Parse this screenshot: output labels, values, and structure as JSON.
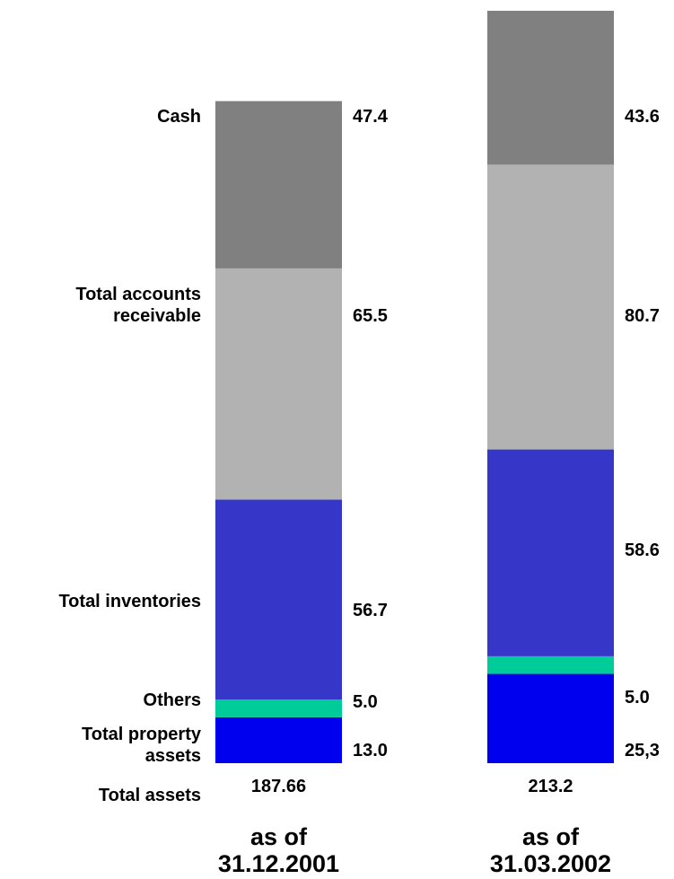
{
  "chart_data": {
    "type": "stacked_bar",
    "categories": [
      "as of\n31.12.2001",
      "as of\n31.03.2002"
    ],
    "total_label": "Total assets",
    "totals": [
      187.66,
      213.2
    ],
    "series": [
      {
        "name": "Total property\nassets",
        "color": "#0000ee",
        "values": [
          13.0,
          25.3
        ],
        "value_labels": [
          "13.0",
          "25,3"
        ]
      },
      {
        "name": "Others",
        "color": "#00cc99",
        "values": [
          5.0,
          5.0
        ],
        "value_labels": [
          "5.0",
          "5.0"
        ]
      },
      {
        "name": "Total inventories",
        "color": "#3636c8",
        "values": [
          56.7,
          58.6
        ]
      },
      {
        "name": "Total accounts\nreceivable",
        "color": "#b2b2b2",
        "values": [
          65.5,
          80.7
        ]
      },
      {
        "name": "Cash",
        "color": "#808080",
        "values": [
          47.4,
          43.6
        ]
      }
    ]
  }
}
